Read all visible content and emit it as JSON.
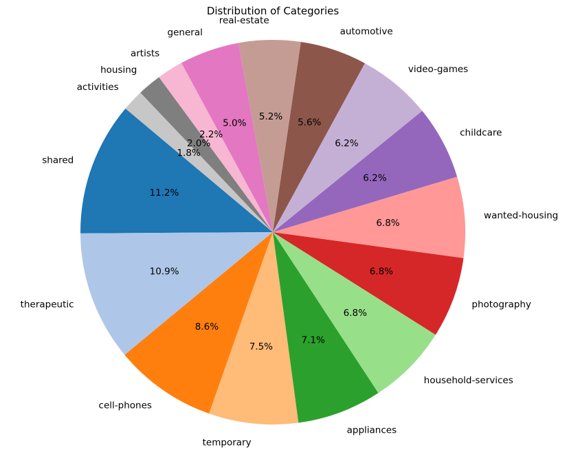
{
  "chart_data": {
    "type": "pie",
    "title": "Distribution of Categories",
    "start_angle_deg": 140,
    "direction": "counterclockwise",
    "slices": [
      {
        "label": "shared",
        "value": 11.2,
        "pct_label": "11.2%",
        "color": "#1f77b4"
      },
      {
        "label": "therapeutic",
        "value": 10.9,
        "pct_label": "10.9%",
        "color": "#aec7e8"
      },
      {
        "label": "cell-phones",
        "value": 8.6,
        "pct_label": "8.6%",
        "color": "#ff7f0e"
      },
      {
        "label": "temporary",
        "value": 7.5,
        "pct_label": "7.5%",
        "color": "#ffbb78"
      },
      {
        "label": "appliances",
        "value": 7.1,
        "pct_label": "7.1%",
        "color": "#2ca02c"
      },
      {
        "label": "household-services",
        "value": 6.8,
        "pct_label": "6.8%",
        "color": "#98df8a"
      },
      {
        "label": "photography",
        "value": 6.8,
        "pct_label": "6.8%",
        "color": "#d62728"
      },
      {
        "label": "wanted-housing",
        "value": 6.8,
        "pct_label": "6.8%",
        "color": "#ff9896"
      },
      {
        "label": "childcare",
        "value": 6.2,
        "pct_label": "6.2%",
        "color": "#9467bd"
      },
      {
        "label": "video-games",
        "value": 6.2,
        "pct_label": "6.2%",
        "color": "#c5b0d5"
      },
      {
        "label": "automotive",
        "value": 5.6,
        "pct_label": "5.6%",
        "color": "#8c564b"
      },
      {
        "label": "real-estate",
        "value": 5.2,
        "pct_label": "5.2%",
        "color": "#c49c94"
      },
      {
        "label": "general",
        "value": 5.0,
        "pct_label": "5.0%",
        "color": "#e377c2"
      },
      {
        "label": "artists",
        "value": 2.2,
        "pct_label": "2.2%",
        "color": "#f7b6d2"
      },
      {
        "label": "housing",
        "value": 2.0,
        "pct_label": "2.0%",
        "color": "#7f7f7f"
      },
      {
        "label": "activities",
        "value": 1.8,
        "pct_label": "1.8%",
        "color": "#c7c7c7"
      }
    ]
  }
}
